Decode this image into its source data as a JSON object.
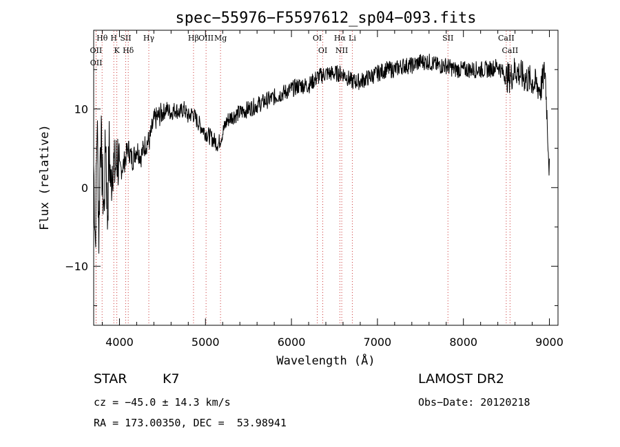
{
  "chart_data": {
    "type": "line",
    "title": "spec−55976−F5597612_sp04−093.fits",
    "xlabel": "Wavelength (Å)",
    "ylabel": "Flux (relative)",
    "xlim": [
      3700,
      9100
    ],
    "ylim": [
      -17.5,
      20
    ],
    "x_ticks": [
      4000,
      5000,
      6000,
      7000,
      8000,
      9000
    ],
    "y_ticks": [
      -10,
      0,
      10
    ],
    "y_tick_labels": [
      "−10",
      "0",
      "10"
    ],
    "grid": false,
    "series": [
      {
        "points": [
          [
            3700,
            3
          ],
          [
            3720,
            -7
          ],
          [
            3740,
            9
          ],
          [
            3760,
            -6
          ],
          [
            3780,
            8
          ],
          [
            3800,
            1
          ],
          [
            3820,
            -3
          ],
          [
            3840,
            7
          ],
          [
            3860,
            -4
          ],
          [
            3880,
            5
          ],
          [
            3900,
            0
          ],
          [
            3920,
            4
          ],
          [
            3940,
            2
          ],
          [
            3960,
            3
          ],
          [
            3980,
            4
          ],
          [
            4000,
            2
          ],
          [
            4050,
            3
          ],
          [
            4100,
            5
          ],
          [
            4150,
            3.5
          ],
          [
            4200,
            5
          ],
          [
            4250,
            4
          ],
          [
            4300,
            5.5
          ],
          [
            4350,
            6
          ],
          [
            4400,
            8.5
          ],
          [
            4450,
            9
          ],
          [
            4500,
            9.5
          ],
          [
            4550,
            10
          ],
          [
            4600,
            9.5
          ],
          [
            4650,
            10
          ],
          [
            4700,
            9.5
          ],
          [
            4750,
            10
          ],
          [
            4800,
            9
          ],
          [
            4850,
            9.5
          ],
          [
            4900,
            8.5
          ],
          [
            5000,
            7
          ],
          [
            5050,
            6.5
          ],
          [
            5100,
            6
          ],
          [
            5150,
            5.5
          ],
          [
            5200,
            7
          ],
          [
            5250,
            8.5
          ],
          [
            5300,
            9
          ],
          [
            5400,
            9.5
          ],
          [
            5500,
            10
          ],
          [
            5600,
            10.5
          ],
          [
            5700,
            11
          ],
          [
            5800,
            11.5
          ],
          [
            5900,
            12
          ],
          [
            6000,
            12.5
          ],
          [
            6100,
            13
          ],
          [
            6200,
            13
          ],
          [
            6300,
            14
          ],
          [
            6400,
            14.5
          ],
          [
            6500,
            14.5
          ],
          [
            6600,
            14.5
          ],
          [
            6700,
            13.5
          ],
          [
            6800,
            13.5
          ],
          [
            6900,
            14
          ],
          [
            7000,
            14.5
          ],
          [
            7100,
            15
          ],
          [
            7200,
            15
          ],
          [
            7300,
            15.5
          ],
          [
            7400,
            15.5
          ],
          [
            7500,
            16
          ],
          [
            7600,
            16
          ],
          [
            7700,
            15.5
          ],
          [
            7800,
            15.5
          ],
          [
            7900,
            15
          ],
          [
            8000,
            15
          ],
          [
            8100,
            15
          ],
          [
            8200,
            15
          ],
          [
            8300,
            15
          ],
          [
            8400,
            15.5
          ],
          [
            8500,
            14
          ],
          [
            8550,
            14
          ],
          [
            8600,
            15
          ],
          [
            8700,
            14
          ],
          [
            8800,
            13.5
          ],
          [
            8900,
            12.5
          ],
          [
            8950,
            15
          ],
          [
            9000,
            2
          ]
        ]
      }
    ],
    "lines": [
      {
        "label": "Hθ",
        "x": 3798
      },
      {
        "label": "OII",
        "x": 3727
      },
      {
        "label": "OII",
        "x": 3729
      },
      {
        "label": "H",
        "x": 3934
      },
      {
        "label": "K",
        "x": 3969
      },
      {
        "label": "SII",
        "x": 4072
      },
      {
        "label": "Hδ",
        "x": 4102
      },
      {
        "label": "Hγ",
        "x": 4341
      },
      {
        "label": "Hβ",
        "x": 4861
      },
      {
        "label": "OIII",
        "x": 5007
      },
      {
        "label": "Mg",
        "x": 5175
      },
      {
        "label": "OI",
        "x": 6300
      },
      {
        "label": "OI",
        "x": 6364
      },
      {
        "label": "Hα",
        "x": 6563
      },
      {
        "label": "NII",
        "x": 6585
      },
      {
        "label": "Li",
        "x": 6708
      },
      {
        "label": "SII",
        "x": 7820
      },
      {
        "label": "CaII",
        "x": 8498
      },
      {
        "label": "CaII",
        "x": 8542
      }
    ]
  },
  "info": {
    "class_label": "STAR",
    "subclass": "K7",
    "survey": "LAMOST DR2",
    "redshift": "cz = −45.0 ± 14.3 km/s",
    "obs_date": "Obs−Date: 20120218",
    "coords": "RA = 173.00350, DEC =  53.98941"
  },
  "colors": {
    "spectrum": "#000000",
    "marker_lines": "#cc3333",
    "background": "#ffffff"
  }
}
